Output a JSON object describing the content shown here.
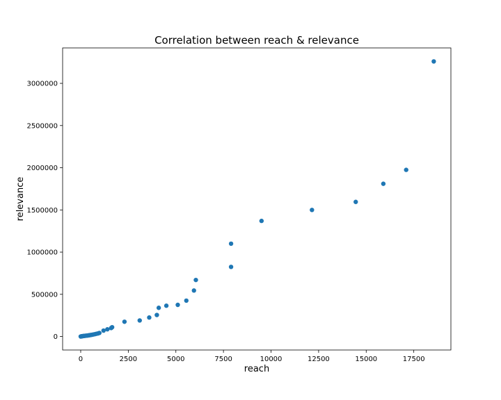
{
  "chart_data": {
    "type": "scatter",
    "title": "Correlation between reach & relevance",
    "xlabel": "reach",
    "ylabel": "relevance",
    "xlim": [
      -950,
      19450
    ],
    "ylim": [
      -160000,
      3420000
    ],
    "x_ticks": [
      0,
      2500,
      5000,
      7500,
      10000,
      12500,
      15000,
      17500
    ],
    "x_tick_labels": [
      "0",
      "2500",
      "5000",
      "7500",
      "10000",
      "12500",
      "15000",
      "17500"
    ],
    "y_ticks": [
      0,
      500000,
      1000000,
      1500000,
      2000000,
      2500000,
      3000000
    ],
    "y_tick_labels": [
      "0",
      "500000",
      "1000000",
      "1500000",
      "2000000",
      "2500000",
      "3000000"
    ],
    "grid": false,
    "marker_color": "#1f77b4",
    "series": [
      {
        "x": [
          0,
          20,
          40,
          60,
          90,
          120,
          150,
          180,
          220,
          260,
          300,
          350,
          400,
          450,
          500,
          560,
          620,
          680,
          750,
          820,
          900,
          980,
          1200,
          1400,
          1600,
          1650,
          2300,
          3100,
          3600,
          4000,
          4100,
          4500,
          5100,
          5550,
          5950,
          6050,
          7900,
          7900,
          9500,
          12150,
          14450,
          15900,
          17100,
          18550
        ],
        "y": [
          0,
          1000,
          2000,
          3000,
          4000,
          5000,
          6000,
          7000,
          8000,
          9000,
          10000,
          11000,
          13000,
          15000,
          17000,
          19000,
          22000,
          25000,
          28000,
          32000,
          36000,
          42000,
          70000,
          85000,
          100000,
          110000,
          175000,
          190000,
          225000,
          255000,
          340000,
          365000,
          375000,
          425000,
          545000,
          670000,
          1100000,
          825000,
          1370000,
          1500000,
          1595000,
          1810000,
          1975000,
          3260000
        ]
      }
    ]
  }
}
